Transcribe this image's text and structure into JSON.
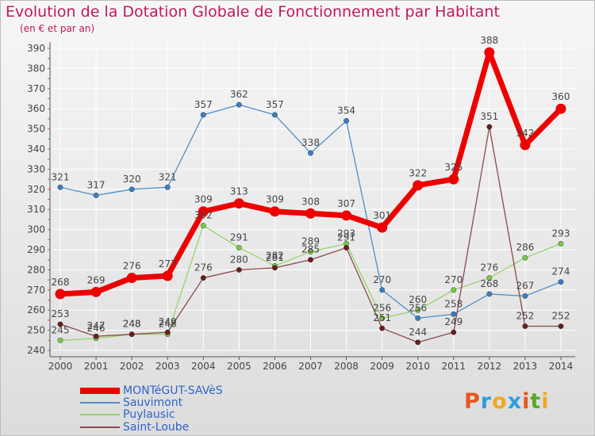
{
  "title": "Evolution de la Dotation Globale de Fonctionnement par Habitant",
  "subtitle": "(en € et par an)",
  "colors": {
    "title": "#c2185b",
    "legend_text": "#2e62c9",
    "grid": "#ffffff",
    "axis": "#555555"
  },
  "chart_data": {
    "type": "line",
    "title": "Evolution de la Dotation Globale de Fonctionnement par Habitant",
    "subtitle": "(en € et par an)",
    "xlabel": "",
    "ylabel": "",
    "categories": [
      "2000",
      "2001",
      "2002",
      "2003",
      "2004",
      "2005",
      "2006",
      "2007",
      "2008",
      "2009",
      "2010",
      "2011",
      "2012",
      "2013",
      "2014"
    ],
    "ylim": [
      240,
      390
    ],
    "yticks": [
      240,
      250,
      260,
      270,
      280,
      290,
      300,
      310,
      320,
      330,
      340,
      350,
      360,
      370,
      380,
      390
    ],
    "grid": true,
    "legend_position": "bottom-left",
    "series": [
      {
        "name": "Sauvimont",
        "color": "#4e8fc9",
        "dot": "#3a7fc4",
        "width": 1.3,
        "r": 3.2,
        "values": [
          321,
          317,
          320,
          321,
          357,
          362,
          357,
          338,
          354,
          270,
          256,
          258,
          268,
          267,
          274
        ]
      },
      {
        "name": "Puylausic",
        "color": "#96d46c",
        "dot": "#7acb45",
        "width": 1.3,
        "r": 3.2,
        "values": [
          245,
          246,
          248,
          248,
          302,
          291,
          282,
          289,
          293,
          256,
          260,
          270,
          276,
          286,
          293
        ]
      },
      {
        "name": "Saint-Loube",
        "color": "#8a4a4a",
        "dot": "#6b1c1c",
        "width": 1.3,
        "r": 3.2,
        "values": [
          253,
          247,
          248,
          249,
          276,
          280,
          281,
          285,
          291,
          251,
          244,
          249,
          351,
          252,
          252
        ]
      },
      {
        "name": "MONTéGUT-SAVèS",
        "color": "#ee0000",
        "dot": "#ee0000",
        "width": 7,
        "r": 6.5,
        "values": [
          268,
          269,
          276,
          277,
          309,
          313,
          309,
          308,
          307,
          301,
          322,
          325,
          388,
          342,
          360
        ]
      }
    ],
    "legend": [
      "MONTéGUT-SAVèS",
      "Sauvimont",
      "Puylausic",
      "Saint-Loube"
    ]
  },
  "logo": {
    "letters": [
      "P",
      "r",
      "o",
      "x",
      "i",
      "t",
      "i"
    ],
    "colors": [
      "#e8581f",
      "#2e9ee0",
      "#f2a81f",
      "#2e9ee0",
      "#e8581f",
      "#5aaa2a",
      "#f2a81f"
    ]
  }
}
